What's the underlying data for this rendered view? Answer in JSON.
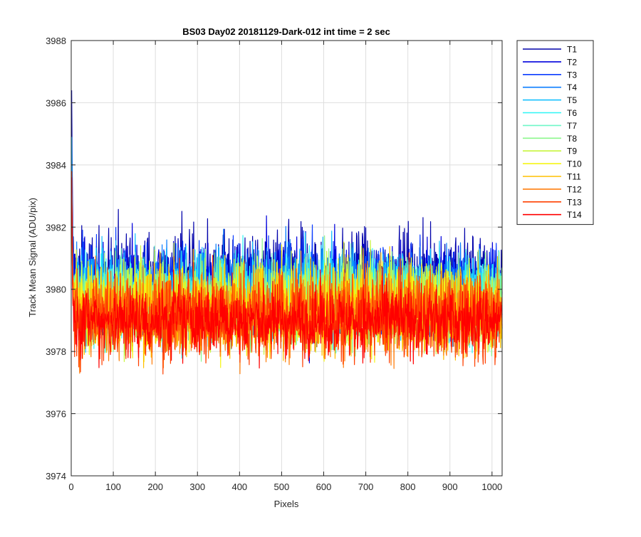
{
  "chart_data": {
    "type": "line",
    "title": "BS03 Day02 20181129-Dark-012 int time = 2 sec",
    "xlabel": "Pixels",
    "ylabel": "Track Mean Signal (ADU/pix)",
    "xlim": [
      0,
      1024
    ],
    "ylim": [
      3974,
      3988
    ],
    "xticks": [
      0,
      100,
      200,
      300,
      400,
      500,
      600,
      700,
      800,
      900,
      1000
    ],
    "yticks": [
      3974,
      3976,
      3978,
      3980,
      3982,
      3984,
      3986,
      3988
    ],
    "grid": true,
    "legend_position": "outside-top-right",
    "series": [
      {
        "name": "T1",
        "color": "#0000aa",
        "base": 3980.3,
        "spread": 1.1,
        "initial": 3986.4
      },
      {
        "name": "T2",
        "color": "#0000dd",
        "base": 3980.1,
        "spread": 1.0,
        "initial": 3984.5
      },
      {
        "name": "T3",
        "color": "#0a3cff",
        "base": 3980.0,
        "spread": 1.0,
        "initial": 3983.5
      },
      {
        "name": "T4",
        "color": "#0a7dff",
        "base": 3979.9,
        "spread": 1.0,
        "initial": 3983.0
      },
      {
        "name": "T5",
        "color": "#15c0ff",
        "base": 3979.8,
        "spread": 1.0,
        "initial": 3984.9
      },
      {
        "name": "T6",
        "color": "#2ef6f6",
        "base": 3979.7,
        "spread": 1.0,
        "initial": 3983.5
      },
      {
        "name": "T7",
        "color": "#6ff7c8",
        "base": 3979.6,
        "spread": 0.9,
        "initial": 3983.0
      },
      {
        "name": "T8",
        "color": "#8cf78c",
        "base": 3979.6,
        "spread": 1.0,
        "initial": 3983.5
      },
      {
        "name": "T9",
        "color": "#c8f53c",
        "base": 3979.5,
        "spread": 1.0,
        "initial": 3983.0
      },
      {
        "name": "T10",
        "color": "#f5f514",
        "base": 3979.4,
        "spread": 1.0,
        "initial": 3983.0
      },
      {
        "name": "T11",
        "color": "#ffc000",
        "base": 3979.3,
        "spread": 1.0,
        "initial": 3983.0
      },
      {
        "name": "T12",
        "color": "#ff7f0e",
        "base": 3979.2,
        "spread": 1.0,
        "initial": 3983.5
      },
      {
        "name": "T13",
        "color": "#ff4000",
        "base": 3979.1,
        "spread": 1.0,
        "initial": 3983.8
      },
      {
        "name": "T14",
        "color": "#ff0000",
        "base": 3979.0,
        "spread": 0.8,
        "initial": 3983.6
      }
    ]
  }
}
